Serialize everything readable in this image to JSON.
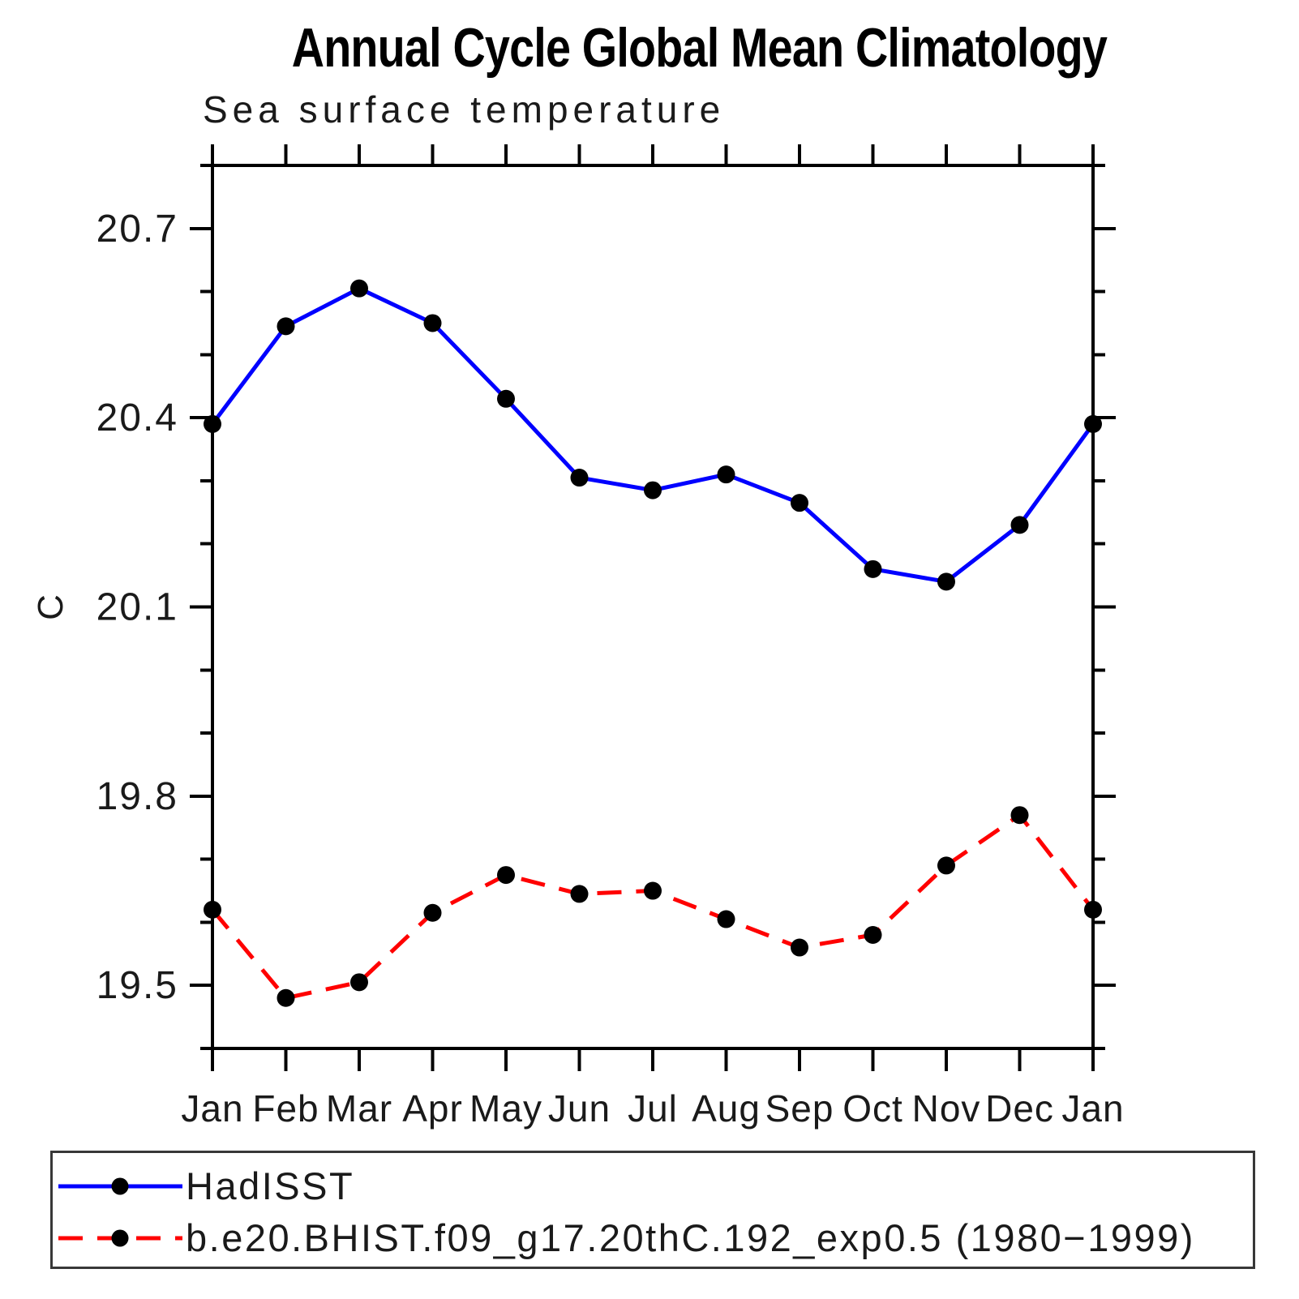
{
  "page": {
    "background": "#ffffff"
  },
  "chart_data": {
    "type": "line",
    "title": "Annual Cycle Global Mean Climatology",
    "subtitle": "Sea surface temperature",
    "ylabel": "C",
    "xlabel": "",
    "categories": [
      "Jan",
      "Feb",
      "Mar",
      "Apr",
      "May",
      "Jun",
      "Jul",
      "Aug",
      "Sep",
      "Oct",
      "Nov",
      "Dec",
      "Jan"
    ],
    "ylim": [
      19.4,
      20.8
    ],
    "yticks_major": [
      19.5,
      19.8,
      20.1,
      20.4,
      20.7
    ],
    "ytick_minor_step": 0.1,
    "grid": false,
    "legend_position": "bottom-left-box",
    "frame_color": "#000000",
    "marker_shape": "filled-circle",
    "series": [
      {
        "name": "HadISST",
        "color": "#0000ff",
        "line_style": "solid",
        "marker_color": "#000000",
        "values": [
          20.39,
          20.545,
          20.605,
          20.55,
          20.43,
          20.305,
          20.285,
          20.31,
          20.265,
          20.16,
          20.14,
          20.23,
          20.39
        ]
      },
      {
        "name": "b.e20.BHIST.f09_g17.20thC.192_exp0.5 (1980−1999)",
        "color": "#ff0000",
        "line_style": "dashed",
        "marker_color": "#000000",
        "values": [
          19.62,
          19.48,
          19.505,
          19.615,
          19.675,
          19.645,
          19.65,
          19.605,
          19.56,
          19.58,
          19.69,
          19.77,
          19.62
        ]
      }
    ]
  }
}
